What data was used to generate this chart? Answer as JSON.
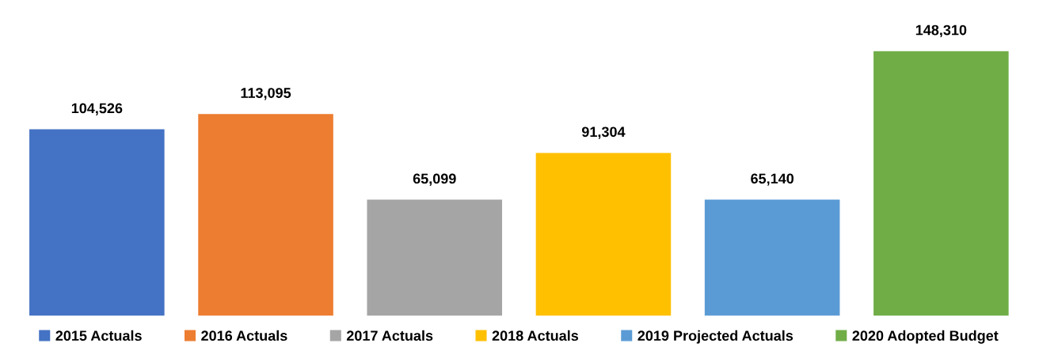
{
  "chart_data": {
    "type": "bar",
    "categories": [
      null
    ],
    "series": [
      {
        "name": "2015 Actuals",
        "color": "#4472c4",
        "values": [
          104526
        ],
        "value_labels": [
          "104,526"
        ]
      },
      {
        "name": "2016 Actuals",
        "color": "#ed7d31",
        "values": [
          113095
        ],
        "value_labels": [
          "113,095"
        ]
      },
      {
        "name": "2017 Actuals",
        "color": "#a5a5a5",
        "values": [
          65099
        ],
        "value_labels": [
          "65,099"
        ]
      },
      {
        "name": "2018 Actuals",
        "color": "#ffc000",
        "values": [
          91304
        ],
        "value_labels": [
          "91,304"
        ]
      },
      {
        "name": "2019 Projected Actuals",
        "color": "#5b9bd5",
        "values": [
          65140
        ],
        "value_labels": [
          "65,140"
        ]
      },
      {
        "name": "2020 Adopted Budget",
        "color": "#70ad47",
        "values": [
          148310
        ],
        "value_labels": [
          "148,310"
        ]
      }
    ],
    "legend": "bottom",
    "grid": false
  }
}
